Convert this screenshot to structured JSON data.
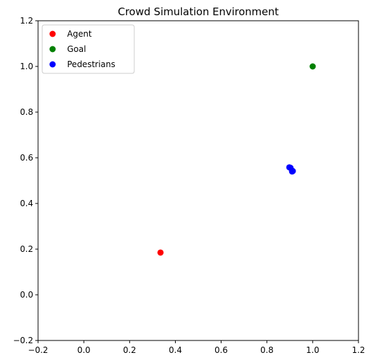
{
  "chart_data": {
    "type": "scatter",
    "title": "Crowd Simulation Environment",
    "xlabel": "",
    "ylabel": "",
    "xlim": [
      -0.2,
      1.2
    ],
    "ylim": [
      -0.2,
      1.2
    ],
    "xticks": [
      -0.2,
      0.0,
      0.2,
      0.4,
      0.6,
      0.8,
      1.0,
      1.2
    ],
    "yticks": [
      -0.2,
      0.0,
      0.2,
      0.4,
      0.6,
      0.8,
      1.0,
      1.2
    ],
    "xtick_labels": [
      "−0.2",
      "0.0",
      "0.2",
      "0.4",
      "0.6",
      "0.8",
      "1.0",
      "1.2"
    ],
    "ytick_labels": [
      "−0.2",
      "0.0",
      "0.2",
      "0.4",
      "0.6",
      "0.8",
      "1.0",
      "1.2"
    ],
    "grid": false,
    "legend_position": "top-left",
    "series": [
      {
        "name": "Agent",
        "color": "#ff0000",
        "points": [
          {
            "x": 0.335,
            "y": 0.185
          }
        ]
      },
      {
        "name": "Goal",
        "color": "#008000",
        "points": [
          {
            "x": 1.0,
            "y": 1.0
          }
        ]
      },
      {
        "name": "Pedestrians",
        "color": "#0000ff",
        "points": [
          {
            "x": 0.898,
            "y": 0.558
          },
          {
            "x": 0.903,
            "y": 0.556
          },
          {
            "x": 0.91,
            "y": 0.54
          },
          {
            "x": 0.913,
            "y": 0.542
          }
        ]
      }
    ]
  }
}
